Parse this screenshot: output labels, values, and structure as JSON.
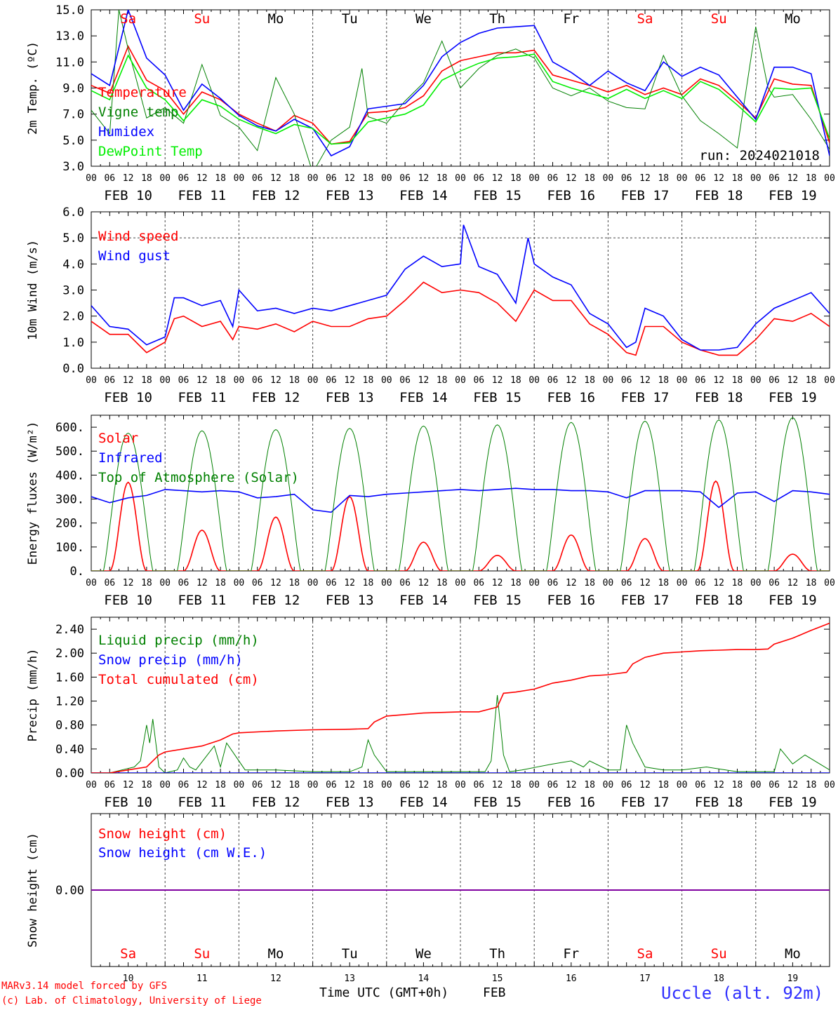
{
  "footer": {
    "model": "MARv3.14 model forced by GFS",
    "credit": "(c) Lab. of Climatology, University of Liege",
    "xlabel": "Time UTC (GMT+0h)",
    "month": "FEB",
    "station": "Uccle (alt. 92m)"
  },
  "days": {
    "weekday": [
      "Sa",
      "Su",
      "Mo",
      "Tu",
      "We",
      "Th",
      "Fr",
      "Sa",
      "Su",
      "Mo"
    ],
    "weekend": [
      true,
      true,
      false,
      false,
      false,
      false,
      false,
      true,
      true,
      false
    ],
    "date_labels": [
      "FEB 10",
      "FEB 11",
      "FEB 12",
      "FEB 13",
      "FEB 14",
      "FEB 15",
      "FEB 16",
      "FEB 17",
      "FEB 18",
      "FEB 19"
    ],
    "day_numbers": [
      "10",
      "11",
      "12",
      "13",
      "14",
      "15",
      "16",
      "17",
      "18",
      "19"
    ],
    "hour_ticks": [
      "00",
      "06",
      "12",
      "18"
    ],
    "final_tick": "00"
  },
  "colors": {
    "weekend": "#ff0000",
    "weekday": "#000000"
  },
  "chart_data": [
    {
      "type": "line",
      "ylabel": "2m Temp. (ºC)",
      "ylim": [
        3.0,
        15.0
      ],
      "yticks": [
        "3.0",
        "5.0",
        "7.0",
        "9.0",
        "11.0",
        "13.0",
        "15.0"
      ],
      "annotation": "run: 2024021018",
      "legend_labels": [
        "Temperature",
        "Vigne temp",
        "Humidex",
        "DewPoint Temp"
      ],
      "series": [
        {
          "name": "Temperature",
          "color": "#ff0000",
          "x": [
            0,
            6,
            12,
            18,
            24,
            30,
            36,
            42,
            48,
            54,
            60,
            66,
            72,
            78,
            84,
            90,
            96,
            102,
            108,
            114,
            120,
            126,
            132,
            138,
            144,
            150,
            156,
            162,
            168,
            174,
            180,
            186,
            192,
            198,
            204,
            210,
            216,
            222,
            228,
            234,
            240
          ],
          "y": [
            9.2,
            8.6,
            12.2,
            9.6,
            8.8,
            7.0,
            8.7,
            8.1,
            7.0,
            6.3,
            5.7,
            6.9,
            6.3,
            4.7,
            4.9,
            7.1,
            7.2,
            7.5,
            8.4,
            10.3,
            11.1,
            11.4,
            11.7,
            11.7,
            11.9,
            10.0,
            9.6,
            9.2,
            8.7,
            9.2,
            8.5,
            9.0,
            8.5,
            9.7,
            9.2,
            8.0,
            6.7,
            9.7,
            9.3,
            9.2,
            4.8
          ]
        },
        {
          "name": "Vigne temp",
          "color": "#008000",
          "x": [
            0,
            6,
            9,
            12,
            18,
            24,
            30,
            36,
            42,
            48,
            54,
            60,
            66,
            72,
            78,
            84,
            88,
            90,
            96,
            102,
            108,
            114,
            120,
            126,
            132,
            138,
            144,
            150,
            156,
            162,
            168,
            174,
            180,
            186,
            192,
            198,
            204,
            210,
            216,
            220,
            222,
            228,
            234,
            240
          ],
          "y": [
            7.3,
            5.5,
            15.0,
            12.0,
            6.7,
            7.5,
            6.3,
            10.8,
            6.9,
            6.0,
            4.2,
            9.8,
            7.0,
            2.5,
            5.0,
            6.0,
            10.5,
            6.8,
            6.3,
            8.0,
            9.4,
            12.6,
            9.0,
            10.5,
            11.5,
            12.0,
            11.3,
            9.0,
            8.4,
            9.0,
            8.0,
            7.5,
            7.4,
            11.5,
            8.4,
            6.5,
            5.5,
            4.4,
            13.7,
            9.0,
            8.3,
            8.5,
            6.6,
            4.3
          ]
        },
        {
          "name": "Humidex",
          "color": "#0000ff",
          "x": [
            0,
            6,
            12,
            18,
            24,
            30,
            36,
            42,
            48,
            54,
            60,
            66,
            72,
            78,
            84,
            90,
            96,
            102,
            108,
            114,
            120,
            126,
            132,
            138,
            144,
            150,
            156,
            162,
            168,
            174,
            180,
            186,
            192,
            198,
            204,
            210,
            216,
            222,
            228,
            234,
            240
          ],
          "y": [
            10.1,
            9.2,
            15.0,
            11.3,
            10.0,
            7.3,
            9.3,
            8.2,
            6.9,
            6.1,
            5.7,
            6.6,
            5.9,
            3.8,
            4.5,
            7.4,
            7.6,
            7.8,
            9.2,
            11.4,
            12.5,
            13.2,
            13.6,
            13.7,
            13.8,
            11.0,
            10.2,
            9.2,
            10.3,
            9.4,
            8.8,
            11.0,
            9.9,
            10.6,
            10.0,
            8.3,
            6.6,
            10.6,
            10.6,
            10.1,
            3.8
          ]
        },
        {
          "name": "DewPoint Temp",
          "color": "#00ee00",
          "x": [
            0,
            6,
            12,
            18,
            24,
            30,
            36,
            42,
            48,
            54,
            60,
            66,
            72,
            78,
            84,
            90,
            96,
            102,
            108,
            114,
            120,
            126,
            132,
            138,
            144,
            150,
            156,
            162,
            168,
            174,
            180,
            186,
            192,
            198,
            204,
            210,
            216,
            222,
            228,
            234,
            240
          ],
          "y": [
            8.8,
            8.1,
            11.5,
            9.0,
            8.1,
            6.5,
            8.1,
            7.6,
            6.6,
            6.0,
            5.5,
            6.2,
            5.9,
            4.7,
            4.8,
            6.4,
            6.7,
            7.0,
            7.7,
            9.6,
            10.3,
            10.9,
            11.3,
            11.4,
            11.6,
            9.5,
            9.0,
            8.6,
            8.2,
            8.9,
            8.2,
            8.8,
            8.2,
            9.5,
            8.9,
            7.7,
            6.4,
            9.0,
            8.9,
            9.0,
            5.1
          ]
        }
      ]
    },
    {
      "type": "line",
      "ylabel": "10m Wind (m/s)",
      "ylim": [
        0.0,
        6.0
      ],
      "yticks": [
        "0.0",
        "1.0",
        "2.0",
        "3.0",
        "4.0",
        "5.0",
        "6.0"
      ],
      "hline": 5.0,
      "legend_labels": [
        "Wind speed",
        "Wind gust"
      ],
      "series": [
        {
          "name": "Wind speed",
          "color": "#ff0000",
          "x": [
            0,
            6,
            12,
            18,
            24,
            27,
            30,
            36,
            42,
            46,
            48,
            54,
            60,
            66,
            72,
            78,
            84,
            90,
            96,
            102,
            108,
            114,
            120,
            126,
            132,
            138,
            144,
            150,
            156,
            162,
            168,
            174,
            177,
            180,
            186,
            192,
            198,
            204,
            210,
            216,
            222,
            228,
            234,
            240
          ],
          "y": [
            1.8,
            1.3,
            1.3,
            0.6,
            1.0,
            1.9,
            2.0,
            1.6,
            1.8,
            1.1,
            1.6,
            1.5,
            1.7,
            1.4,
            1.8,
            1.6,
            1.6,
            1.9,
            2.0,
            2.6,
            3.3,
            2.9,
            3.0,
            2.9,
            2.5,
            1.8,
            3.0,
            2.6,
            2.6,
            1.7,
            1.3,
            0.6,
            0.5,
            1.6,
            1.6,
            1.0,
            0.7,
            0.5,
            0.5,
            1.1,
            1.9,
            1.8,
            2.1,
            1.6
          ]
        },
        {
          "name": "Wind gust",
          "color": "#0000ff",
          "x": [
            0,
            6,
            12,
            18,
            24,
            27,
            30,
            36,
            42,
            46,
            48,
            54,
            60,
            66,
            72,
            78,
            84,
            90,
            96,
            102,
            108,
            114,
            120,
            121,
            126,
            132,
            138,
            142,
            144,
            150,
            156,
            162,
            168,
            174,
            177,
            180,
            186,
            192,
            198,
            204,
            210,
            216,
            222,
            228,
            234,
            240
          ],
          "y": [
            2.4,
            1.6,
            1.5,
            0.9,
            1.2,
            2.7,
            2.7,
            2.4,
            2.6,
            1.6,
            3.0,
            2.2,
            2.3,
            2.1,
            2.3,
            2.2,
            2.4,
            2.6,
            2.8,
            3.8,
            4.3,
            3.9,
            4.0,
            5.5,
            3.9,
            3.6,
            2.5,
            5.0,
            4.0,
            3.5,
            3.2,
            2.1,
            1.7,
            0.8,
            1.0,
            2.3,
            2.0,
            1.1,
            0.7,
            0.7,
            0.8,
            1.7,
            2.3,
            2.6,
            2.9,
            2.1
          ]
        }
      ]
    },
    {
      "type": "line",
      "ylabel": "Energy fluxes (W/m²)",
      "ylim": [
        0,
        650
      ],
      "yticks": [
        "0.",
        "100.",
        "200.",
        "300.",
        "400.",
        "500.",
        "600."
      ],
      "legend_labels": [
        "Solar",
        "Infrared",
        "Top of Atmosphere (Solar)"
      ],
      "series": [
        {
          "name": "Solar",
          "color": "#ff0000",
          "peak_hour": [
            12,
            12,
            12,
            12,
            12,
            12,
            12,
            12,
            11,
            12
          ],
          "peak": [
            370,
            170,
            225,
            310,
            120,
            65,
            150,
            135,
            375,
            70
          ]
        },
        {
          "name": "Infrared",
          "color": "#0000ff",
          "x": [
            0,
            6,
            12,
            18,
            24,
            30,
            36,
            42,
            48,
            54,
            60,
            66,
            72,
            78,
            84,
            90,
            96,
            102,
            108,
            114,
            120,
            126,
            132,
            138,
            144,
            150,
            156,
            162,
            168,
            174,
            180,
            186,
            192,
            198,
            204,
            210,
            216,
            222,
            228,
            234,
            240
          ],
          "y": [
            310,
            285,
            305,
            315,
            340,
            335,
            330,
            335,
            330,
            305,
            310,
            320,
            255,
            245,
            315,
            310,
            320,
            325,
            330,
            335,
            340,
            335,
            340,
            345,
            340,
            340,
            335,
            335,
            330,
            305,
            335,
            335,
            335,
            330,
            265,
            325,
            330,
            290,
            335,
            330,
            320
          ]
        },
        {
          "name": "Top of Atmosphere (Solar)",
          "color": "#008000",
          "peak": [
            575,
            585,
            590,
            595,
            605,
            610,
            620,
            625,
            630,
            640
          ]
        }
      ]
    },
    {
      "type": "line",
      "ylabel": "Precip (mm/h)",
      "ylim": [
        0.0,
        2.6
      ],
      "yticks": [
        "0.00",
        "0.40",
        "0.80",
        "1.20",
        "1.60",
        "2.00",
        "2.40"
      ],
      "legend_labels": [
        "Liquid precip (mm/h)",
        "Snow precip (mm/h)",
        "Total cumulated (cm)"
      ],
      "series": [
        {
          "name": "Liquid precip (mm/h)",
          "color": "#008000",
          "x": [
            0,
            6,
            10,
            14,
            16,
            18,
            19,
            20,
            22,
            24,
            28,
            30,
            32,
            34,
            40,
            42,
            44,
            50,
            60,
            72,
            84,
            88,
            90,
            92,
            96,
            108,
            120,
            128,
            130,
            132,
            134,
            136,
            140,
            150,
            156,
            160,
            162,
            168,
            172,
            174,
            176,
            178,
            180,
            186,
            192,
            200,
            210,
            216,
            222,
            224,
            228,
            232,
            240
          ],
          "y": [
            0,
            0,
            0.05,
            0.1,
            0.2,
            0.8,
            0.5,
            0.9,
            0.1,
            0,
            0.05,
            0.25,
            0.1,
            0.05,
            0.45,
            0.1,
            0.5,
            0.05,
            0.05,
            0.02,
            0.02,
            0.1,
            0.55,
            0.3,
            0.02,
            0.02,
            0.02,
            0.02,
            0.2,
            1.3,
            0.3,
            0.02,
            0.05,
            0.15,
            0.2,
            0.1,
            0.2,
            0.05,
            0.05,
            0.8,
            0.5,
            0.3,
            0.1,
            0.05,
            0.05,
            0.1,
            0.02,
            0.02,
            0.02,
            0.4,
            0.15,
            0.3,
            0.05
          ]
        },
        {
          "name": "Snow precip (mm/h)",
          "color": "#0000ff",
          "x": [
            0,
            240
          ],
          "y": [
            0,
            0
          ]
        },
        {
          "name": "Total cumulated (cm)",
          "color": "#ff0000",
          "x": [
            0,
            6,
            12,
            18,
            22,
            24,
            30,
            36,
            42,
            46,
            48,
            60,
            72,
            84,
            90,
            92,
            96,
            108,
            120,
            126,
            132,
            134,
            138,
            144,
            150,
            156,
            162,
            168,
            174,
            176,
            180,
            186,
            192,
            198,
            204,
            210,
            216,
            220,
            222,
            228,
            234,
            240
          ],
          "y": [
            0,
            0,
            0.05,
            0.1,
            0.3,
            0.35,
            0.4,
            0.45,
            0.55,
            0.65,
            0.67,
            0.7,
            0.72,
            0.73,
            0.74,
            0.85,
            0.95,
            1.0,
            1.02,
            1.02,
            1.1,
            1.33,
            1.35,
            1.4,
            1.5,
            1.55,
            1.62,
            1.64,
            1.68,
            1.82,
            1.93,
            2.0,
            2.02,
            2.04,
            2.05,
            2.06,
            2.06,
            2.07,
            2.15,
            2.25,
            2.38,
            2.5
          ]
        }
      ]
    },
    {
      "type": "line",
      "ylabel": "Snow height (cm)",
      "ylim": [
        -1,
        1
      ],
      "yticks": [
        "0.00"
      ],
      "legend_labels": [
        "Snow height (cm)",
        "Snow height (cm W.E.)"
      ],
      "series": [
        {
          "name": "Snow height (cm)",
          "color": "#ff0000",
          "x": [
            0,
            240
          ],
          "y": [
            0,
            0
          ]
        },
        {
          "name": "Snow height (cm W.E.)",
          "color": "#0000ff",
          "x": [
            0,
            240
          ],
          "y": [
            0,
            0
          ]
        }
      ]
    }
  ]
}
